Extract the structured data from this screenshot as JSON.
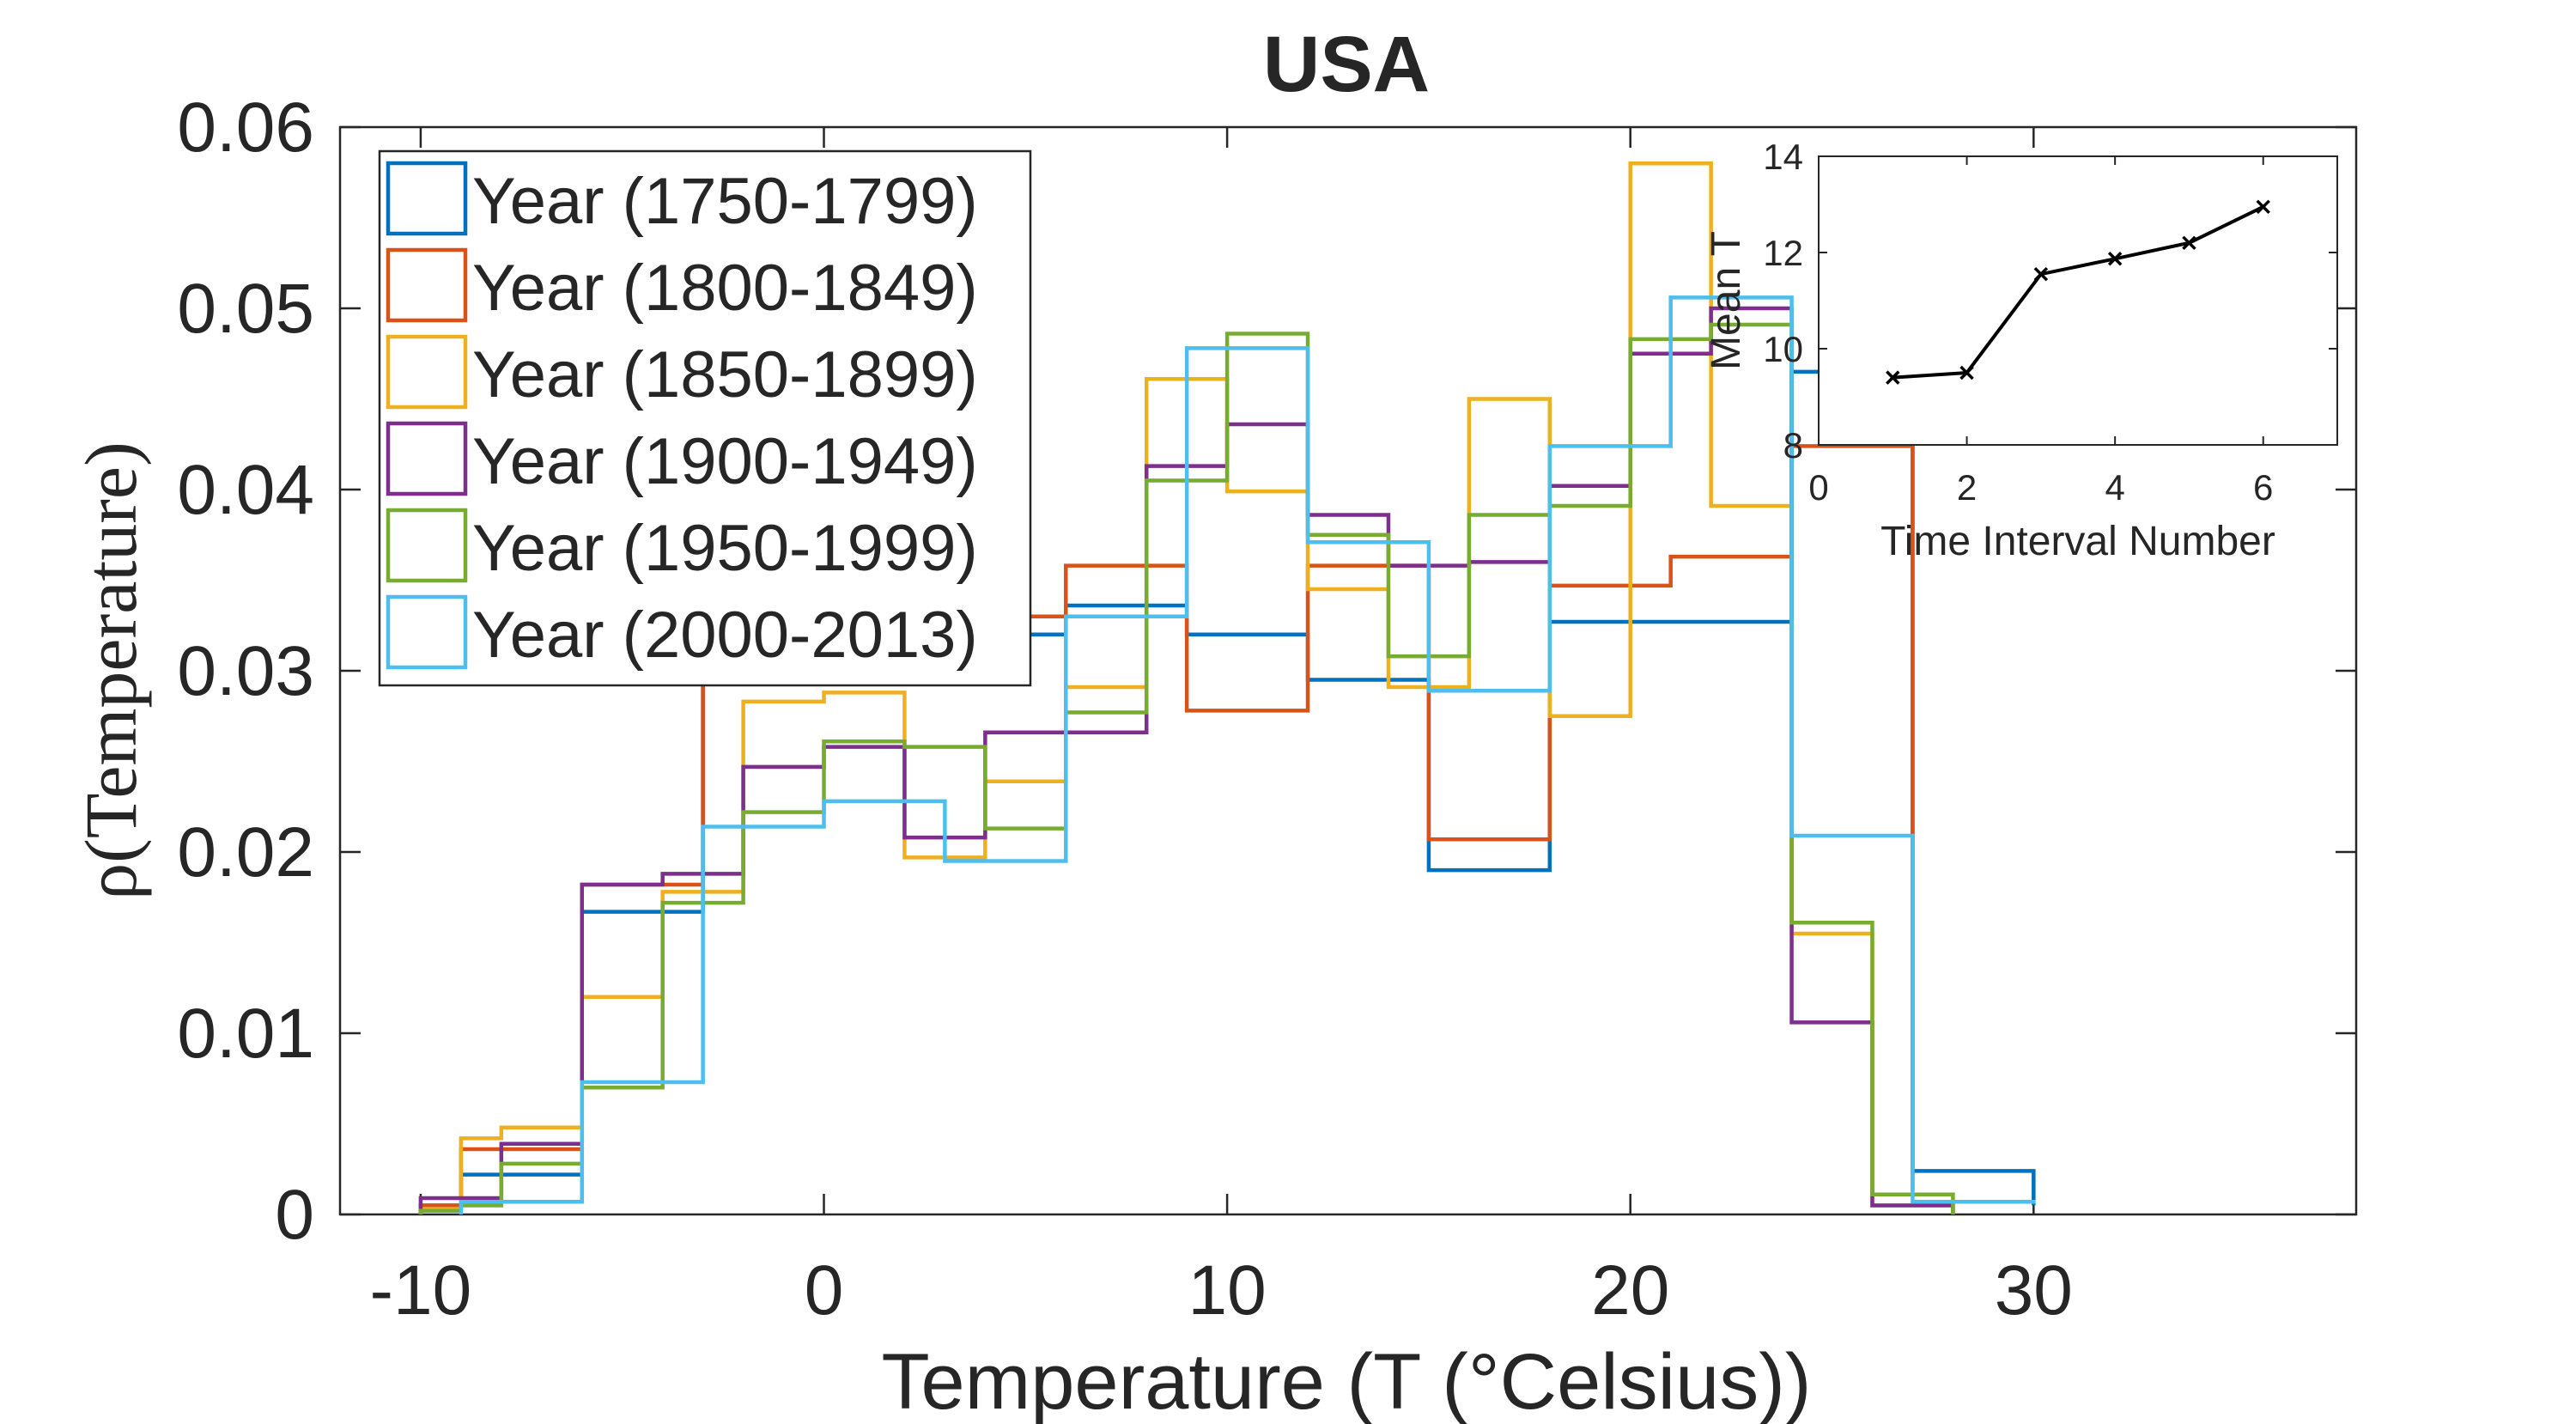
{
  "chart_data": [
    {
      "type": "histogram-step",
      "title": "USA",
      "xlabel": "Temperature (T (°Celsius))",
      "ylabel": "ρ(Temperature)",
      "xlim": [
        -12,
        38
      ],
      "ylim": [
        0,
        0.06
      ],
      "xticks": [
        -10,
        0,
        10,
        20,
        30
      ],
      "yticks": [
        0,
        0.01,
        0.02,
        0.03,
        0.04,
        0.05,
        0.06
      ],
      "xtick_labels": [
        "-10",
        "0",
        "10",
        "20",
        "30"
      ],
      "ytick_labels": [
        "0",
        "0.01",
        "0.02",
        "0.03",
        "0.04",
        "0.05",
        "0.06"
      ],
      "legend_position": "top-left",
      "series": [
        {
          "name": "Year (1750-1799)",
          "color": "#0072BD",
          "edges": [
            -10,
            -9,
            -6,
            -3,
            0,
            3,
            6,
            9,
            12,
            15,
            18,
            21,
            24,
            27,
            30
          ],
          "values": [
            0.0005,
            0.0022,
            0.0167,
            0.03,
            0.031,
            0.032,
            0.0336,
            0.032,
            0.0295,
            0.019,
            0.0327,
            0.0327,
            0.0465,
            0.0024,
            0.0005
          ]
        },
        {
          "name": "Year (1800-1849)",
          "color": "#D95319",
          "edges": [
            -10,
            -9,
            -6,
            -3,
            0,
            3,
            6,
            9,
            12,
            15,
            18,
            21,
            24,
            27
          ],
          "values": [
            0.0005,
            0.0036,
            0.0182,
            0.032,
            0.031,
            0.033,
            0.0358,
            0.0278,
            0.0358,
            0.0207,
            0.0347,
            0.0363,
            0.0424,
            0.0013
          ]
        },
        {
          "name": "Year (1850-1899)",
          "color": "#EDB120",
          "edges": [
            -10,
            -9,
            -8,
            -6,
            -4,
            -2,
            0,
            2,
            4,
            6,
            8,
            10,
            12,
            14,
            16,
            18,
            20,
            22,
            24,
            26,
            28
          ],
          "values": [
            0.0003,
            0.0042,
            0.0048,
            0.012,
            0.0178,
            0.0283,
            0.0288,
            0.0197,
            0.0239,
            0.0291,
            0.0461,
            0.0399,
            0.0345,
            0.0291,
            0.045,
            0.0275,
            0.058,
            0.0391,
            0.0155,
            0.0005
          ]
        },
        {
          "name": "Year (1900-1949)",
          "color": "#7E2F8E",
          "edges": [
            -10,
            -9,
            -8,
            -6,
            -4,
            -2,
            0,
            2,
            4,
            6,
            8,
            10,
            12,
            14,
            16,
            18,
            20,
            22,
            24,
            26,
            28
          ],
          "values": [
            0.0009,
            0.0009,
            0.0039,
            0.0182,
            0.0188,
            0.0247,
            0.0258,
            0.0208,
            0.0266,
            0.0266,
            0.0413,
            0.0436,
            0.0386,
            0.0358,
            0.036,
            0.0402,
            0.0475,
            0.05,
            0.0106,
            0.0005
          ]
        },
        {
          "name": "Year (1950-1999)",
          "color": "#77AC30",
          "edges": [
            -10,
            -9,
            -8,
            -6,
            -4,
            -2,
            0,
            2,
            4,
            6,
            8,
            10,
            12,
            14,
            16,
            18,
            20,
            22,
            24,
            26,
            28
          ],
          "values": [
            0.0002,
            0.0005,
            0.0028,
            0.007,
            0.0172,
            0.0222,
            0.0261,
            0.0258,
            0.0213,
            0.0277,
            0.0405,
            0.0486,
            0.0375,
            0.0308,
            0.0386,
            0.0391,
            0.0483,
            0.0491,
            0.0161,
            0.0011
          ]
        },
        {
          "name": "Year (2000-2013)",
          "color": "#4DBEEE",
          "edges": [
            -9,
            -6,
            -3,
            0,
            3,
            6,
            9,
            12,
            15,
            18,
            21,
            24,
            27,
            30
          ],
          "values": [
            0.0007,
            0.0073,
            0.0214,
            0.0228,
            0.0195,
            0.033,
            0.0478,
            0.0371,
            0.0289,
            0.0424,
            0.0506,
            0.0209,
            0.0007,
            0.0006
          ]
        }
      ]
    },
    {
      "type": "line",
      "position": "inset-top-right",
      "xlabel": "Time Interval Number",
      "ylabel": "Mean T",
      "xlim": [
        0,
        7
      ],
      "ylim": [
        8,
        14
      ],
      "xticks": [
        0,
        2,
        4,
        6
      ],
      "yticks": [
        8,
        10,
        12,
        14
      ],
      "xtick_labels": [
        "0",
        "2",
        "4",
        "6"
      ],
      "ytick_labels": [
        "8",
        "10",
        "12",
        "14"
      ],
      "x": [
        1,
        2,
        3,
        4,
        5,
        6
      ],
      "y": [
        9.4,
        9.5,
        11.55,
        11.87,
        12.2,
        12.95
      ],
      "color": "#000000",
      "marker": "x"
    }
  ]
}
